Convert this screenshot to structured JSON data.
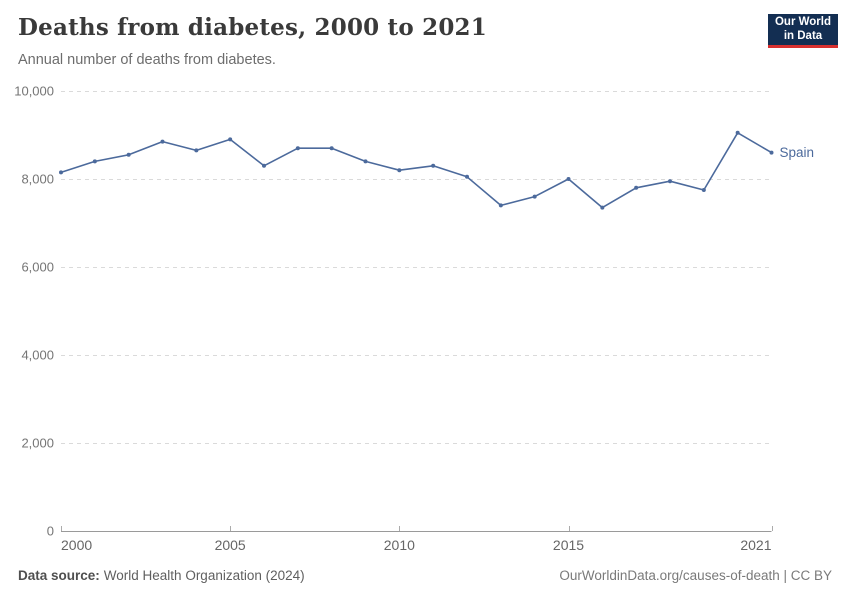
{
  "header": {
    "title": "Deaths from diabetes, 2000 to 2021",
    "subtitle": "Annual number of deaths from diabetes.",
    "logo": {
      "line1": "Our World",
      "line2": "in Data"
    }
  },
  "chart_data": {
    "type": "line",
    "title": "Deaths from diabetes, 2000 to 2021",
    "subtitle": "Annual number of deaths from diabetes.",
    "series": [
      {
        "name": "Spain",
        "x": [
          2000,
          2001,
          2002,
          2003,
          2004,
          2005,
          2006,
          2007,
          2008,
          2009,
          2010,
          2011,
          2012,
          2013,
          2014,
          2015,
          2016,
          2017,
          2018,
          2019,
          2020,
          2021
        ],
        "values": [
          8150,
          8400,
          8550,
          8850,
          8650,
          8900,
          8300,
          8700,
          8700,
          8400,
          8200,
          8300,
          8050,
          7400,
          7600,
          8000,
          7350,
          7800,
          7950,
          7750,
          9050,
          8600
        ]
      }
    ],
    "x": [
      2000,
      2001,
      2002,
      2003,
      2004,
      2005,
      2006,
      2007,
      2008,
      2009,
      2010,
      2011,
      2012,
      2013,
      2014,
      2015,
      2016,
      2017,
      2018,
      2019,
      2020,
      2021
    ],
    "values": [
      8150,
      8400,
      8550,
      8850,
      8650,
      8900,
      8300,
      8700,
      8700,
      8400,
      8200,
      8300,
      8050,
      7400,
      7600,
      8000,
      7350,
      7800,
      7950,
      7750,
      9050,
      8600
    ],
    "entity_label": "Spain",
    "ylim": [
      0,
      10000
    ],
    "yticks": [
      0,
      2000,
      4000,
      6000,
      8000,
      10000
    ],
    "ytick_labels": [
      "0",
      "2,000",
      "4,000",
      "6,000",
      "8,000",
      "10,000"
    ],
    "xticks": [
      2000,
      2005,
      2010,
      2015,
      2021
    ],
    "xtick_labels": [
      "2000",
      "2005",
      "2010",
      "2015",
      "2021"
    ],
    "grid": "horizontal-dashed",
    "legend_position": "end-of-line-label",
    "line_color": "#4c6a9c"
  },
  "footer": {
    "source_label": "Data source:",
    "source_text": "World Health Organization (2024)",
    "credit": "OurWorldinData.org/causes-of-death | CC BY"
  },
  "colors": {
    "line": "#4c6a9c",
    "gridline": "#dadada",
    "axis_line": "#9a9a9a",
    "tick_mark": "#ababab",
    "ytick_text": "#757575",
    "xtick_text": "#666666",
    "logo_navy": "#132e52",
    "logo_red": "#d8302f"
  }
}
